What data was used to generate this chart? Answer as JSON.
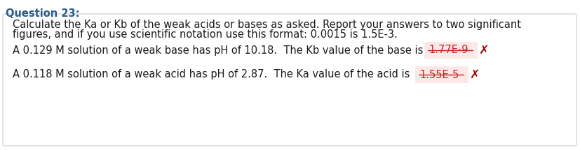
{
  "title": "Question 23:",
  "title_color": "#2b5c8a",
  "title_fontsize": 10.5,
  "bg_color": "#ffffff",
  "box_bg": "#ffffff",
  "box_border": "#cccccc",
  "instruction_line1": "Calculate the Ka or Kb of the weak acids or bases as asked. Report your answers to two significant",
  "instruction_line2": "figures, and if you use scientific notation use this format: 0.0015 is 1.5E-3.",
  "instruction_fontsize": 10.5,
  "instruction_color": "#1a1a1a",
  "row1_text": "A 0.129 M solution of a weak base has pH of 10.18.  The Kb value of the base is",
  "row1_answer": "1.77E-9",
  "row2_text": "A 0.118 M solution of a weak acid has pH of 2.87.  The Ka value of the acid is",
  "row2_answer": "1.55E-5",
  "answer_bg": "#fde8e8",
  "answer_text_color": "#cc2222",
  "cross_color": "#990000",
  "row_fontsize": 10.5,
  "figsize": [
    8.28,
    2.15
  ],
  "dpi": 100
}
